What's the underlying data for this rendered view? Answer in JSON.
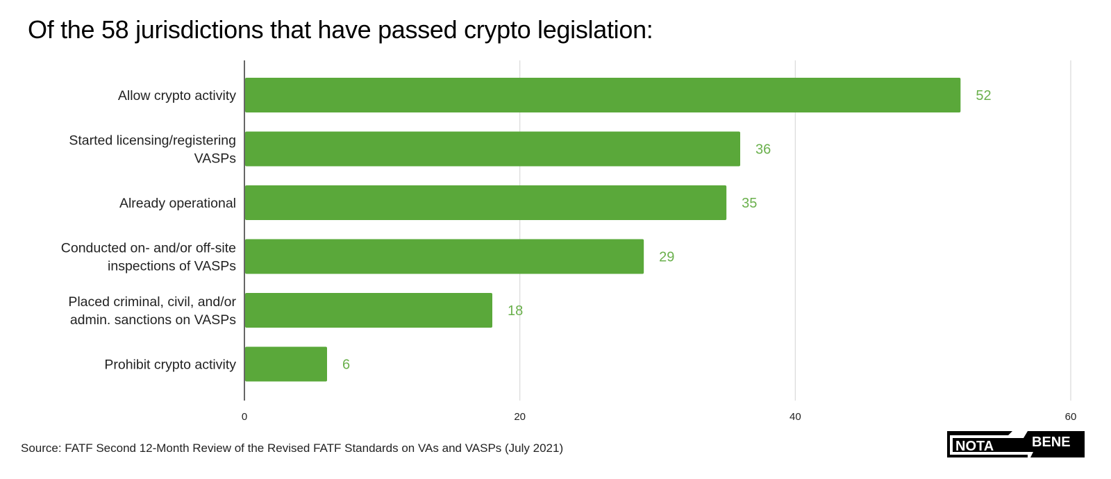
{
  "title": "Of the 58 jurisdictions that have passed crypto legislation:",
  "source": "Source: FATF Second 12-Month Review of the Revised FATF Standards on VAs and VASPs (July 2021)",
  "logo": {
    "left_text": "NOTA",
    "right_text": "BENE"
  },
  "colors": {
    "bar": "#5aa83a",
    "value_label": "#6ab04c",
    "grid": "#d9d9d9",
    "axis": "#333333"
  },
  "chart_data": {
    "type": "bar",
    "orientation": "horizontal",
    "title": "Of the 58 jurisdictions that have passed crypto legislation:",
    "xlabel": "",
    "ylabel": "",
    "categories": [
      [
        "Allow crypto activity"
      ],
      [
        "Started licensing/registering",
        "VASPs"
      ],
      [
        "Already operational"
      ],
      [
        "Conducted on- and/or off-site",
        "inspections of VASPs"
      ],
      [
        "Placed criminal, civil, and/or",
        "admin. sanctions on VASPs"
      ],
      [
        "Prohibit crypto activity"
      ]
    ],
    "values": [
      52,
      36,
      35,
      29,
      18,
      6
    ],
    "xlim": [
      0,
      60
    ],
    "xticks": [
      0,
      20,
      40,
      60
    ],
    "grid": true,
    "legend": "none",
    "data_labels": true
  }
}
